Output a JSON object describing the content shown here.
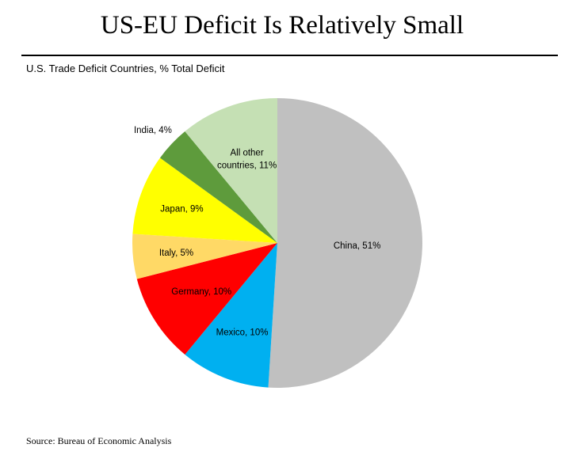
{
  "header": {
    "title": "US-EU Deficit Is Relatively Small"
  },
  "footer": {
    "source": "Source: Bureau of Economic Analysis"
  },
  "chart_data": {
    "type": "pie",
    "title": "U.S. Trade Deficit Countries, % Total Deficit",
    "unit": "%",
    "slices": [
      {
        "label": "China, 51%",
        "name": "China",
        "value": 51,
        "color": "#c0c0c0"
      },
      {
        "label": "Mexico, 10%",
        "name": "Mexico",
        "value": 10,
        "color": "#00b0f0"
      },
      {
        "label": "Germany, 10%",
        "name": "Germany",
        "value": 10,
        "color": "#ff0000"
      },
      {
        "label": "Italy, 5%",
        "name": "Italy",
        "value": 5,
        "color": "#ffd966"
      },
      {
        "label": "Japan, 9%",
        "name": "Japan",
        "value": 9,
        "color": "#ffff00"
      },
      {
        "label": "India, 4%",
        "name": "India",
        "value": 4,
        "color": "#5e9b3c"
      },
      {
        "label": "All other|countries, 11%",
        "name": "All other countries",
        "value": 11,
        "color": "#c5e0b4"
      }
    ],
    "legend": "none",
    "grid": false
  }
}
